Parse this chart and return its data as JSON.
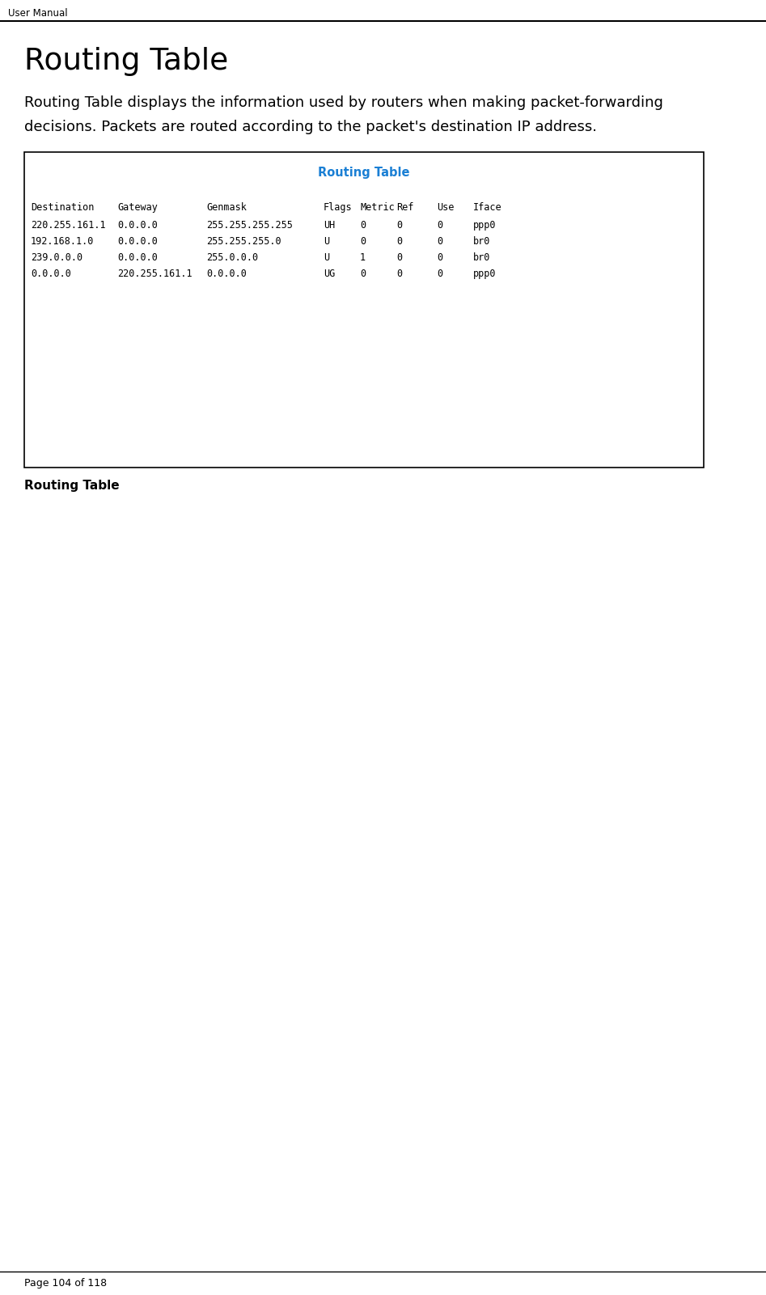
{
  "page_header": "User Manual",
  "title": "Routing Table",
  "body_line1": "Routing Table displays the information used by routers when making packet-forwarding",
  "body_line2": "decisions. Packets are routed according to the packet's destination IP address.",
  "table_title": "Routing Table",
  "table_title_color": "#1a7fd4",
  "table_header_line": "Destination    Gateway          Genmask          Flags Metric Ref      Use Iface",
  "table_data_lines": [
    "220.255.161.1  0.0.0.0          255.255.255.255  UH        0   0        0 ppp0",
    "192.168.1.0    0.0.0.0          255.255.255.0    U         0   0        0 br0",
    "239.0.0.0      0.0.0.0          255.0.0.0        U         1   0        0 br0",
    "0.0.0.0        220.255.161.1    0.0.0.0          UG        0   0        0 ppp0"
  ],
  "caption": "Routing Table",
  "footer_text": "Page 104 of 118",
  "bg_color": "#ffffff",
  "text_color": "#000000",
  "header_line_color": "#000000",
  "table_border_color": "#000000",
  "mono_font": "monospace",
  "body_font": "DejaVu Sans",
  "fig_width": 9.47,
  "fig_height": 16.01,
  "dpi": 100
}
